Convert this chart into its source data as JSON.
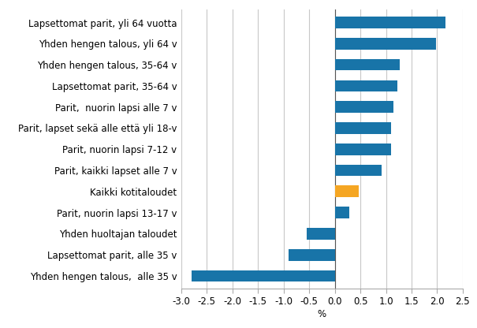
{
  "categories": [
    "Yhden hengen talous,  alle 35 v",
    "Lapsettomat parit, alle 35 v",
    "Yhden huoltajan taloudet",
    "Parit, nuorin lapsi 13-17 v",
    "Kaikki kotitaloudet",
    "Parit, kaikki lapset alle 7 v",
    "Parit, nuorin lapsi 7-12 v",
    "Parit, lapset sekä alle että yli 18-v",
    "Parit,  nuorin lapsi alle 7 v",
    "Lapsettomat parit, 35-64 v",
    "Yhden hengen talous, 35-64 v",
    "Yhden hengen talous, yli 64 v",
    "Lapsettomat parit, yli 64 vuotta"
  ],
  "values": [
    -2.8,
    -0.9,
    -0.55,
    0.28,
    0.47,
    0.92,
    1.1,
    1.1,
    1.15,
    1.22,
    1.27,
    1.98,
    2.17
  ],
  "bar_colors": [
    "#1874a8",
    "#1874a8",
    "#1874a8",
    "#1874a8",
    "#f5a623",
    "#1874a8",
    "#1874a8",
    "#1874a8",
    "#1874a8",
    "#1874a8",
    "#1874a8",
    "#1874a8",
    "#1874a8"
  ],
  "xlim": [
    -3.0,
    2.5
  ],
  "xticks": [
    -3.0,
    -2.5,
    -2.0,
    -1.5,
    -1.0,
    -0.5,
    0.0,
    0.5,
    1.0,
    1.5,
    2.0,
    2.5
  ],
  "xtick_labels": [
    "-3.0",
    "-2.5",
    "-2.0",
    "-1.5",
    "-1.0",
    "-0.5",
    "0.0",
    "0.5",
    "1.0",
    "1.5",
    "2.0",
    "2.5"
  ],
  "xlabel": "%",
  "background_color": "#ffffff",
  "grid_color": "#c8c8c8",
  "bar_height": 0.55,
  "tick_fontsize": 8.5,
  "label_fontsize": 8.5
}
